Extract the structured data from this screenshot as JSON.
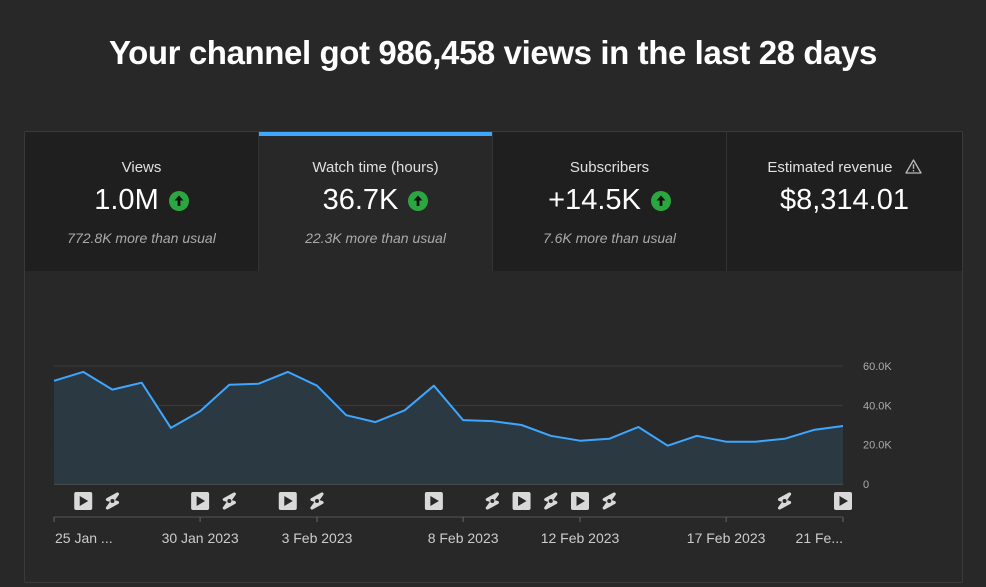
{
  "headline": "Your channel got 986,458 views in the last 28 days",
  "tabs": [
    {
      "label": "Views",
      "value": "1.0M",
      "note": "772.8K more than usual",
      "trend": "up"
    },
    {
      "label": "Watch time (hours)",
      "value": "36.7K",
      "note": "22.3K more than usual",
      "trend": "up"
    },
    {
      "label": "Subscribers",
      "value": "+14.5K",
      "note": "7.6K more than usual",
      "trend": "up"
    },
    {
      "label": "Estimated revenue",
      "value": "$8,314.01",
      "note": "",
      "trend": "warning"
    }
  ],
  "colors": {
    "accent": "#3ea6ff",
    "line": "#3ea6ff",
    "trend_up": "#2ba640"
  },
  "chart_data": {
    "type": "line",
    "series": [
      {
        "values": [
          52.5,
          57.0,
          48.0,
          51.5,
          28.5,
          37.0,
          50.5,
          51.0,
          57.0,
          50.0,
          35.0,
          31.5,
          37.5,
          50.0,
          32.5,
          32.0,
          30.0,
          24.5,
          22.0,
          23.0,
          29.0,
          19.5,
          24.5,
          21.5,
          21.5,
          23.0,
          27.5,
          29.5
        ]
      }
    ],
    "ylim": [
      0,
      60
    ],
    "y_ticks": [
      {
        "value": 0,
        "label": "0"
      },
      {
        "value": 20,
        "label": "20.0K"
      },
      {
        "value": 40,
        "label": "40.0K"
      },
      {
        "value": 60,
        "label": "60.0K"
      }
    ],
    "x_ticks": [
      {
        "index": 0,
        "label": "25 Jan ..."
      },
      {
        "index": 5,
        "label": "30 Jan 2023"
      },
      {
        "index": 9,
        "label": "3 Feb 2023"
      },
      {
        "index": 14,
        "label": "8 Feb 2023"
      },
      {
        "index": 18,
        "label": "12 Feb 2023"
      },
      {
        "index": 23,
        "label": "17 Feb 2023"
      },
      {
        "index": 27,
        "label": "21 Fe..."
      }
    ],
    "markers": [
      {
        "index": 1,
        "kind": "video"
      },
      {
        "index": 2,
        "kind": "short"
      },
      {
        "index": 5,
        "kind": "video"
      },
      {
        "index": 6,
        "kind": "short"
      },
      {
        "index": 8,
        "kind": "video"
      },
      {
        "index": 9,
        "kind": "short"
      },
      {
        "index": 13,
        "kind": "video"
      },
      {
        "index": 15,
        "kind": "short"
      },
      {
        "index": 16,
        "kind": "video"
      },
      {
        "index": 17,
        "kind": "short"
      },
      {
        "index": 18,
        "kind": "video"
      },
      {
        "index": 19,
        "kind": "short"
      },
      {
        "index": 25,
        "kind": "short"
      },
      {
        "index": 27,
        "kind": "video"
      }
    ],
    "grid": true
  }
}
